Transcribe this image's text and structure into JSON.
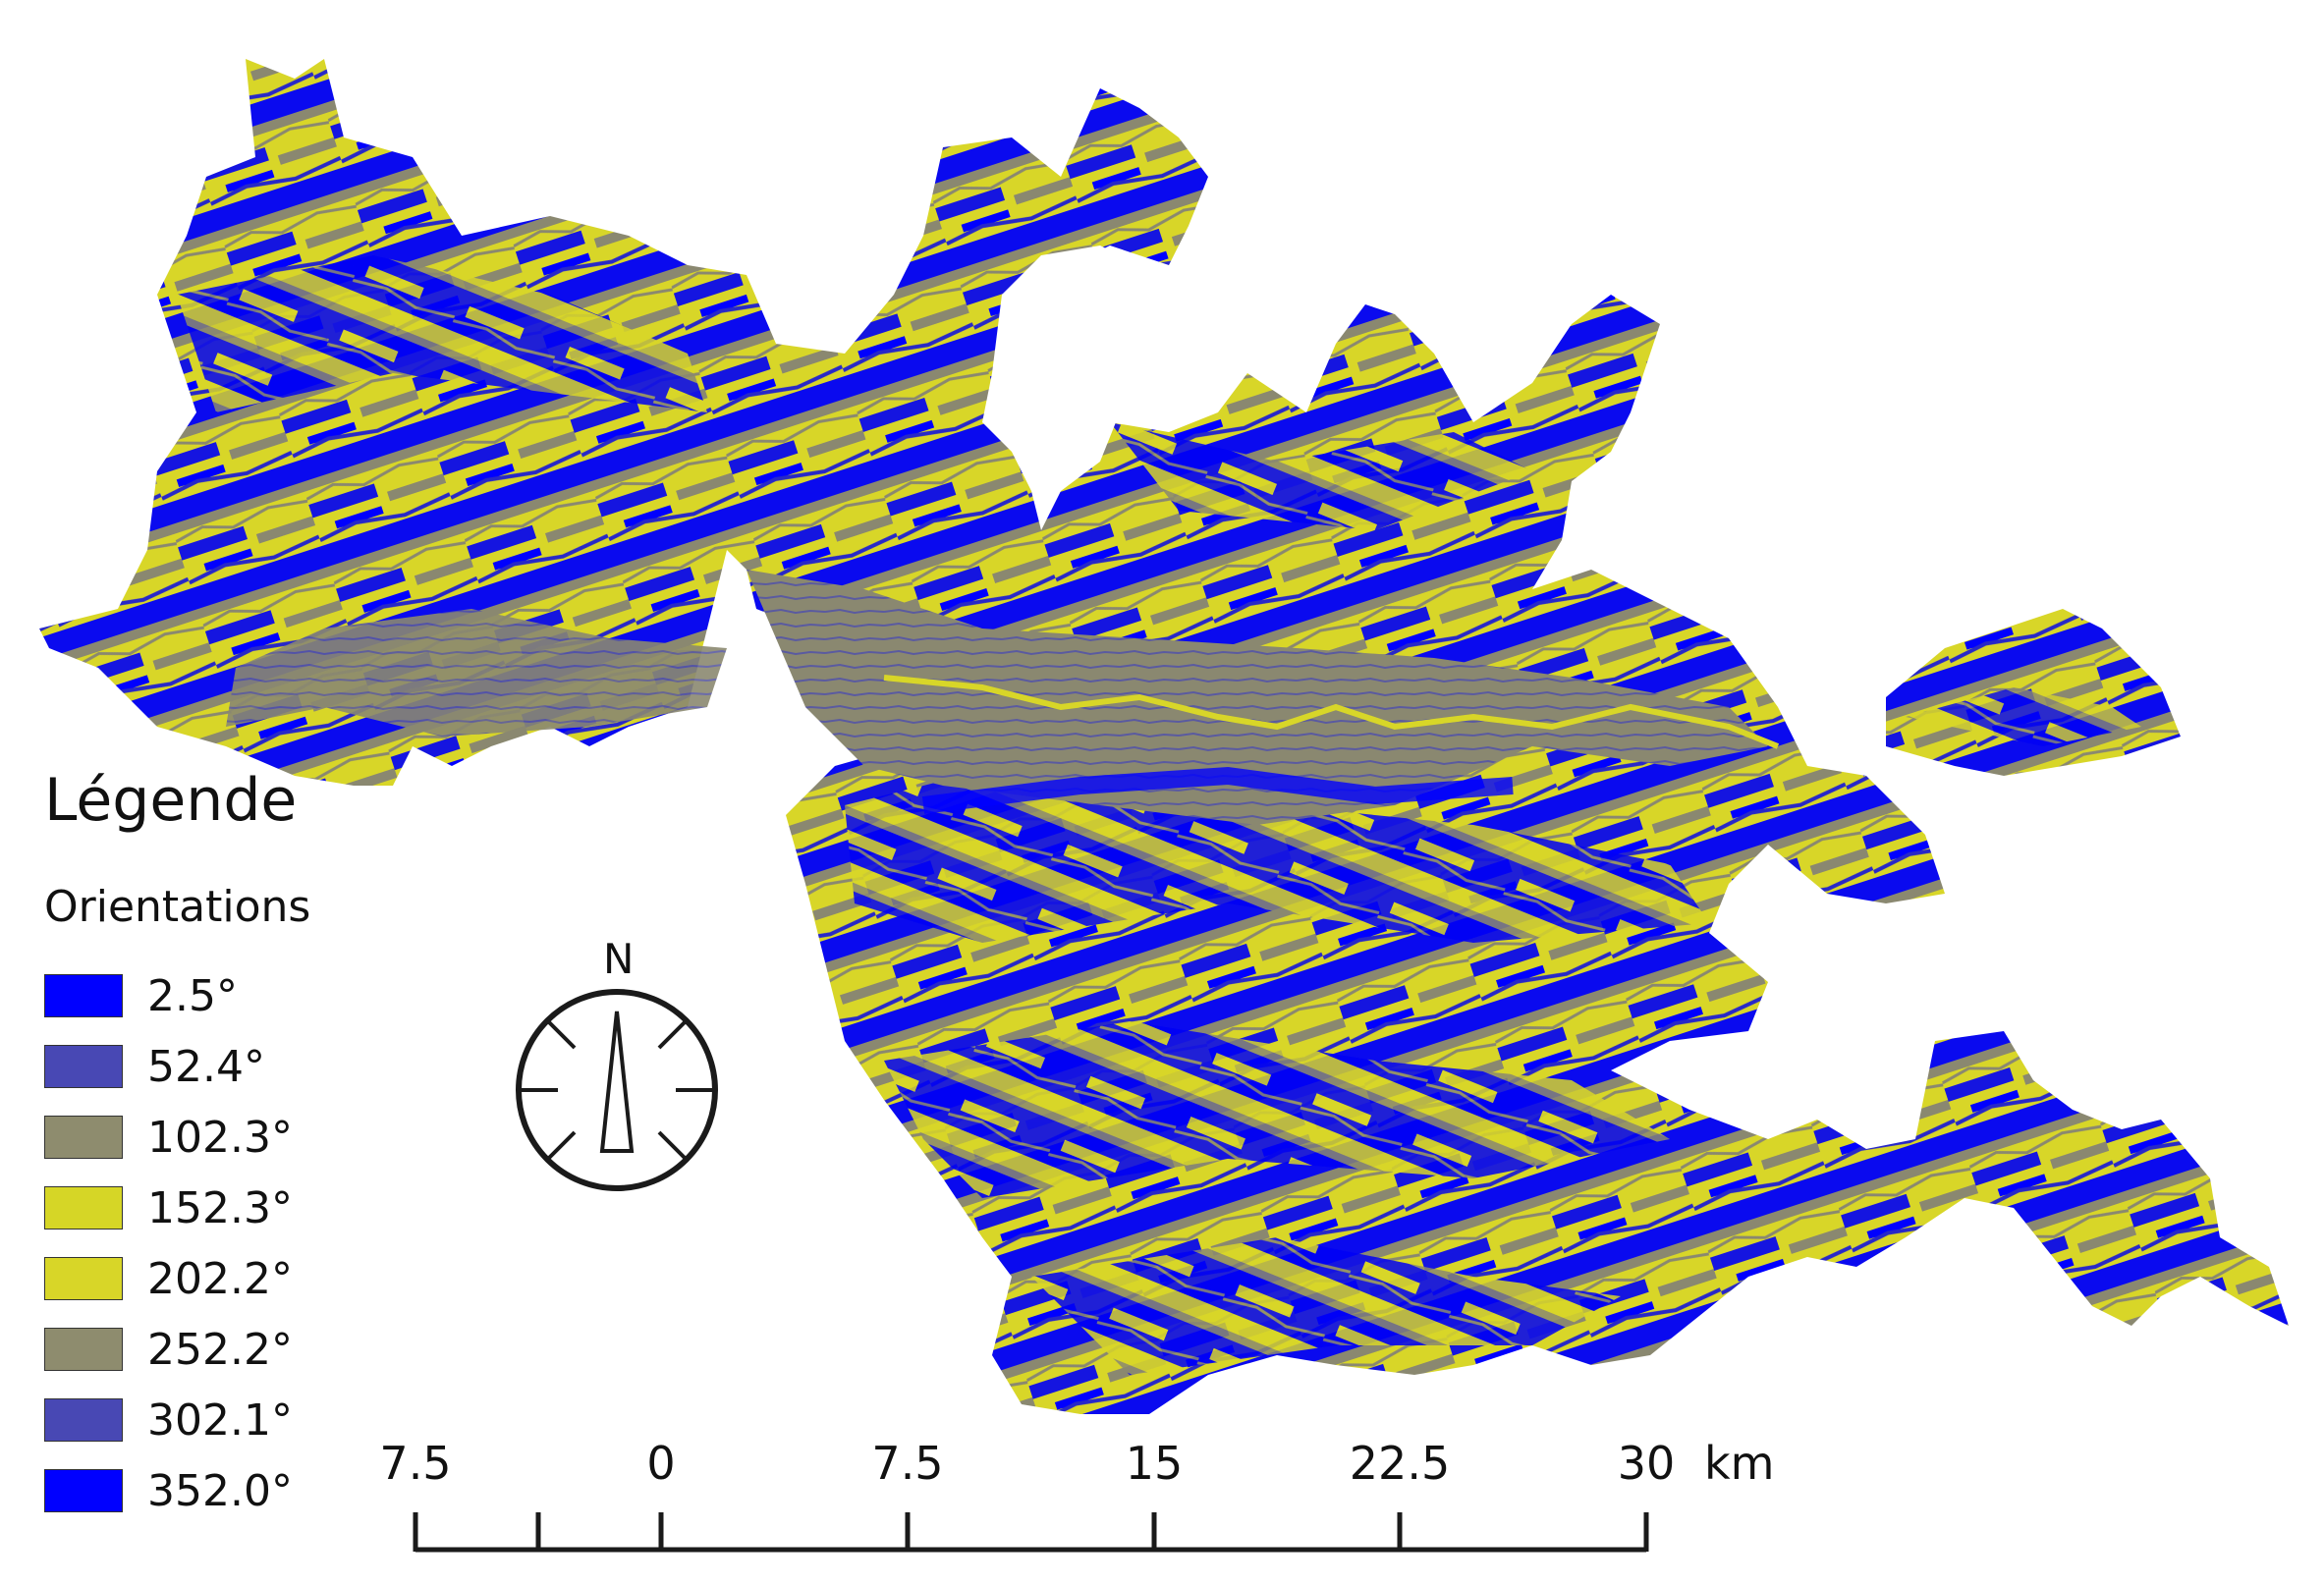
{
  "legend": {
    "title": "Légende",
    "subtitle": "Orientations",
    "items": [
      {
        "label": "2.5°",
        "color": "#0000ff"
      },
      {
        "label": "52.4°",
        "color": "#4848b4"
      },
      {
        "label": "102.3°",
        "color": "#8e8c6e"
      },
      {
        "label": "152.3°",
        "color": "#d6d626"
      },
      {
        "label": "202.2°",
        "color": "#d8d628"
      },
      {
        "label": "252.2°",
        "color": "#8e8c6e"
      },
      {
        "label": "302.1°",
        "color": "#4848b4"
      },
      {
        "label": "352.0°",
        "color": "#0000ff"
      }
    ]
  },
  "compass": {
    "north_label": "N"
  },
  "scale_bar": {
    "ticks": [
      "7.5",
      "0",
      "7.5",
      "15",
      "22.5",
      "30"
    ],
    "unit": "km"
  },
  "colors": {
    "blue": "#0000ff",
    "grey": "#8a8870",
    "yellow": "#d8d628",
    "ink": "#1a1a1a"
  }
}
